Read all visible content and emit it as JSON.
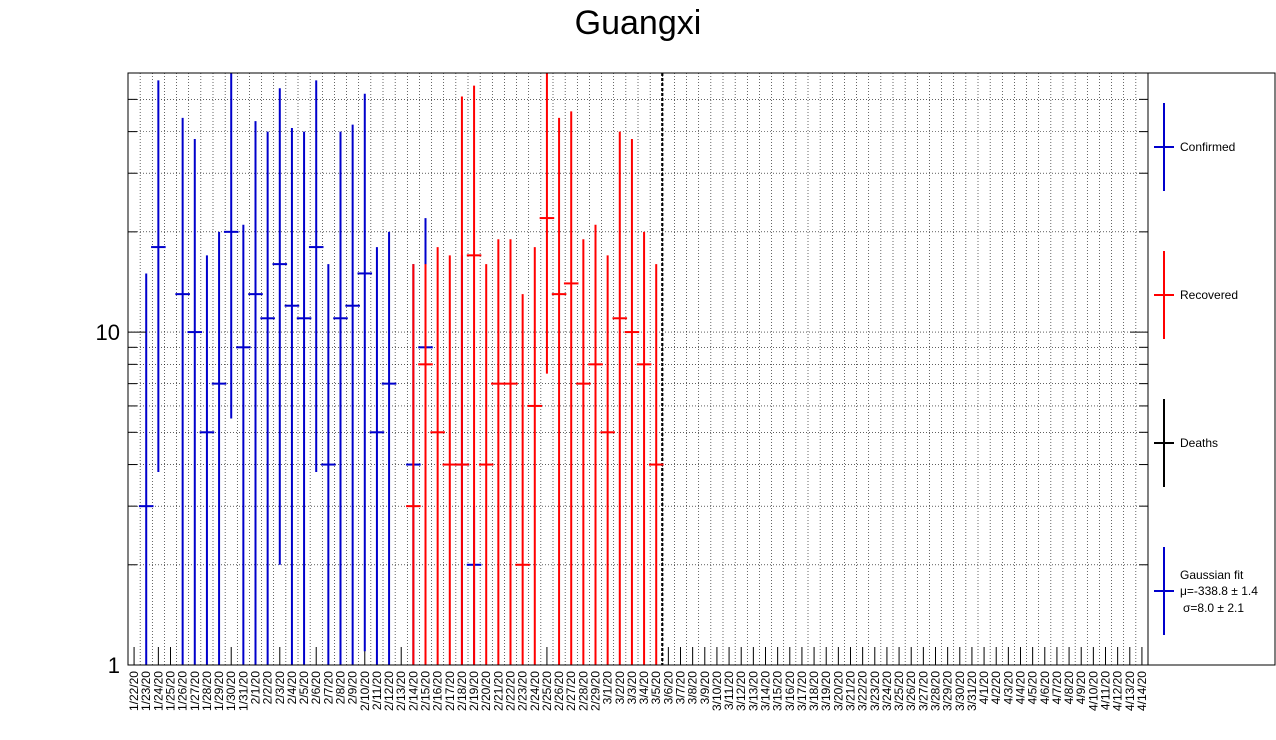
{
  "chart_data": {
    "type": "errorbar",
    "title": "Guangxi",
    "y_scale": "log",
    "ylim": [
      1,
      60
    ],
    "y_ticks": [
      "1",
      "10"
    ],
    "grid": true,
    "legend_position": "right",
    "dates": [
      "1/22/20",
      "1/23/20",
      "1/24/20",
      "1/25/20",
      "1/26/20",
      "1/27/20",
      "1/28/20",
      "1/29/20",
      "1/30/20",
      "1/31/20",
      "2/1/20",
      "2/2/20",
      "2/3/20",
      "2/4/20",
      "2/5/20",
      "2/6/20",
      "2/7/20",
      "2/8/20",
      "2/9/20",
      "2/10/20",
      "2/11/20",
      "2/12/20",
      "2/13/20",
      "2/14/20",
      "2/15/20",
      "2/16/20",
      "2/17/20",
      "2/18/20",
      "2/19/20",
      "2/20/20",
      "2/21/20",
      "2/22/20",
      "2/23/20",
      "2/24/20",
      "2/25/20",
      "2/26/20",
      "2/27/20",
      "2/28/20",
      "2/29/20",
      "3/1/20",
      "3/2/20",
      "3/3/20",
      "3/4/20",
      "3/5/20",
      "3/6/20",
      "3/7/20",
      "3/8/20",
      "3/9/20",
      "3/10/20",
      "3/11/20",
      "3/12/20",
      "3/13/20",
      "3/14/20",
      "3/15/20",
      "3/16/20",
      "3/17/20",
      "3/18/20",
      "3/19/20",
      "3/20/20",
      "3/21/20",
      "3/22/20",
      "3/23/20",
      "3/24/20",
      "3/25/20",
      "3/26/20",
      "3/27/20",
      "3/28/20",
      "3/29/20",
      "3/30/20",
      "3/31/20",
      "4/1/20",
      "4/2/20",
      "4/3/20",
      "4/4/20",
      "4/5/20",
      "4/6/20",
      "4/7/20",
      "4/8/20",
      "4/9/20",
      "4/10/20",
      "4/11/20",
      "4/12/20",
      "4/13/20",
      "4/14/20"
    ],
    "marker_date": "3/6/20",
    "series": [
      {
        "name": "Confirmed",
        "color": "#0000cc",
        "points": [
          {
            "date": "1/23/20",
            "value": 3,
            "low": 1,
            "high": 15
          },
          {
            "date": "1/24/20",
            "value": 18,
            "low": 3.8,
            "high": 57
          },
          {
            "date": "1/26/20",
            "value": 13,
            "low": 1,
            "high": 44
          },
          {
            "date": "1/27/20",
            "value": 10,
            "low": 1,
            "high": 38
          },
          {
            "date": "1/28/20",
            "value": 5,
            "low": 1,
            "high": 17
          },
          {
            "date": "1/29/20",
            "value": 7,
            "low": 1,
            "high": 20
          },
          {
            "date": "1/30/20",
            "value": 20,
            "low": 5.5,
            "high": 60
          },
          {
            "date": "1/31/20",
            "value": 9,
            "low": 1,
            "high": 21
          },
          {
            "date": "2/1/20",
            "value": 13,
            "low": 1,
            "high": 43
          },
          {
            "date": "2/2/20",
            "value": 11,
            "low": 1,
            "high": 40
          },
          {
            "date": "2/3/20",
            "value": 16,
            "low": 2,
            "high": 54
          },
          {
            "date": "2/4/20",
            "value": 12,
            "low": 1,
            "high": 41
          },
          {
            "date": "2/5/20",
            "value": 11,
            "low": 1,
            "high": 40
          },
          {
            "date": "2/6/20",
            "value": 18,
            "low": 3.8,
            "high": 57
          },
          {
            "date": "2/7/20",
            "value": 4,
            "low": 1,
            "high": 16
          },
          {
            "date": "2/8/20",
            "value": 11,
            "low": 1,
            "high": 40
          },
          {
            "date": "2/9/20",
            "value": 12,
            "low": 1,
            "high": 42
          },
          {
            "date": "2/10/20",
            "value": 15,
            "low": 1.1,
            "high": 52
          },
          {
            "date": "2/11/20",
            "value": 5,
            "low": 1,
            "high": 18
          },
          {
            "date": "2/12/20",
            "value": 7,
            "low": 1,
            "high": 20
          },
          {
            "date": "2/14/20",
            "value": 4,
            "low": 1,
            "high": 16
          },
          {
            "date": "2/15/20",
            "value": 9,
            "low": 1,
            "high": 22
          },
          {
            "date": "2/18/20",
            "value": 4,
            "low": 1,
            "high": 17
          },
          {
            "date": "2/19/20",
            "value": 2,
            "low": 1,
            "high": 3
          }
        ]
      },
      {
        "name": "Recovered",
        "color": "#ff0000",
        "points": [
          {
            "date": "2/14/20",
            "value": 3,
            "low": 1,
            "high": 16
          },
          {
            "date": "2/15/20",
            "value": 8,
            "low": 1,
            "high": 16
          },
          {
            "date": "2/16/20",
            "value": 5,
            "low": 1,
            "high": 18
          },
          {
            "date": "2/17/20",
            "value": 4,
            "low": 1,
            "high": 17
          },
          {
            "date": "2/18/20",
            "value": 4,
            "low": 1,
            "high": 51
          },
          {
            "date": "2/19/20",
            "value": 17,
            "low": 1,
            "high": 55
          },
          {
            "date": "2/20/20",
            "value": 4,
            "low": 1,
            "high": 16
          },
          {
            "date": "2/21/20",
            "value": 7,
            "low": 1,
            "high": 19
          },
          {
            "date": "2/22/20",
            "value": 7,
            "low": 1,
            "high": 19
          },
          {
            "date": "2/23/20",
            "value": 2,
            "low": 1,
            "high": 13
          },
          {
            "date": "2/24/20",
            "value": 6,
            "low": 1,
            "high": 18
          },
          {
            "date": "2/25/20",
            "value": 22,
            "low": 7.5,
            "high": 62
          },
          {
            "date": "2/26/20",
            "value": 13,
            "low": 1,
            "high": 44
          },
          {
            "date": "2/27/20",
            "value": 14,
            "low": 1,
            "high": 46
          },
          {
            "date": "2/28/20",
            "value": 7,
            "low": 1,
            "high": 19
          },
          {
            "date": "2/29/20",
            "value": 8,
            "low": 1,
            "high": 21
          },
          {
            "date": "3/1/20",
            "value": 5,
            "low": 1,
            "high": 17
          },
          {
            "date": "3/2/20",
            "value": 11,
            "low": 1,
            "high": 40
          },
          {
            "date": "3/3/20",
            "value": 10,
            "low": 1,
            "high": 38
          },
          {
            "date": "3/4/20",
            "value": 8,
            "low": 1,
            "high": 20
          },
          {
            "date": "3/5/20",
            "value": 4,
            "low": 1,
            "high": 16
          }
        ]
      },
      {
        "name": "Deaths",
        "color": "#000000",
        "points": []
      }
    ],
    "fit": {
      "label": "Gaussian fit",
      "mu": "μ=-338.8 ± 1.4",
      "sigma": "σ=8.0 ± 2.1",
      "color": "#0000cc"
    }
  }
}
